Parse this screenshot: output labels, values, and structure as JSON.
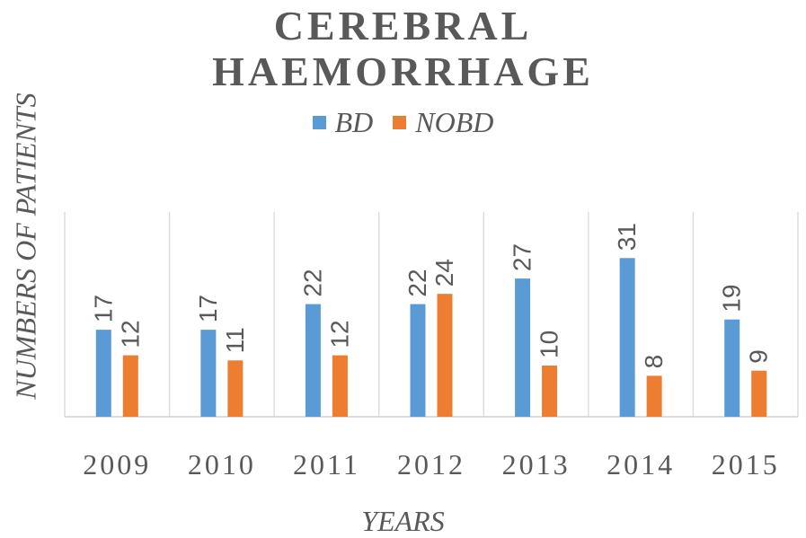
{
  "chart_data": {
    "type": "bar",
    "title_lines": [
      "CEREBRAL",
      "HAEMORRHAGE"
    ],
    "xlabel": "YEARS",
    "ylabel": "NUMBERS OF PATIENTS",
    "categories": [
      "2009",
      "2010",
      "2011",
      "2012",
      "2013",
      "2014",
      "2015"
    ],
    "series": [
      {
        "name": "BD",
        "color": "#5b9bd5",
        "values": [
          17,
          17,
          22,
          22,
          27,
          31,
          19
        ]
      },
      {
        "name": "NOBD",
        "color": "#ed7d31",
        "values": [
          12,
          11,
          12,
          24,
          10,
          8,
          9
        ]
      }
    ],
    "ylim": [
      0,
      40
    ],
    "legend_position": "top",
    "grid": false
  }
}
